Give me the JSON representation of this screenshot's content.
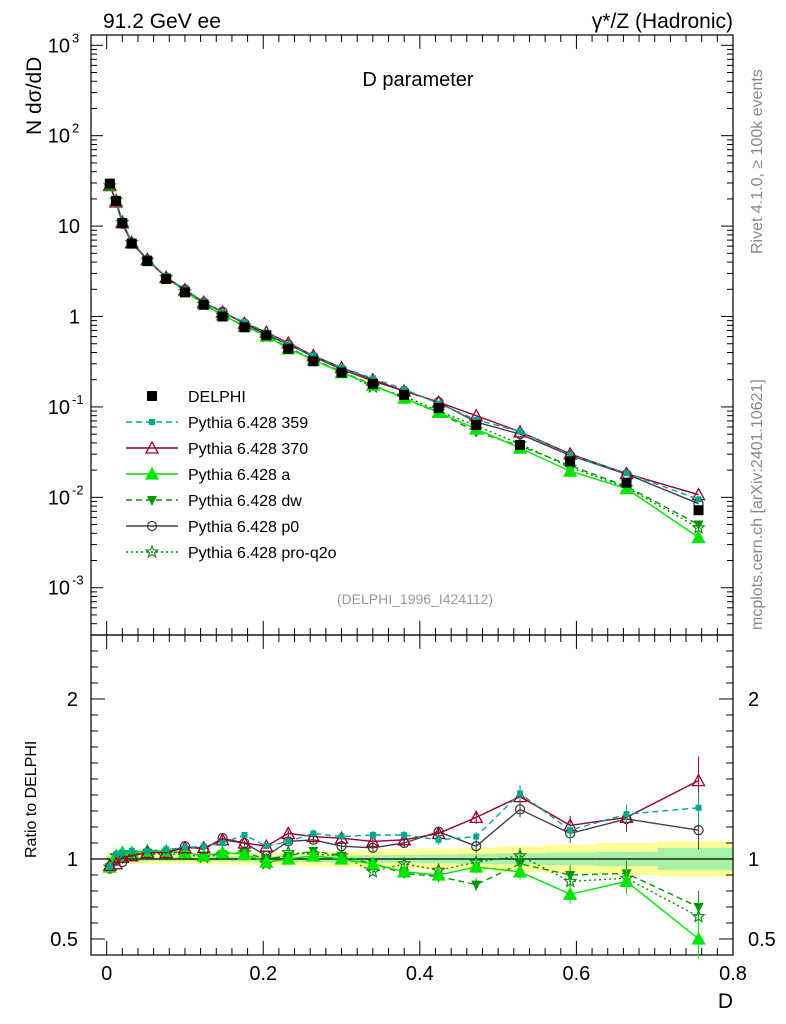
{
  "header": {
    "left_title": "91.2 GeV ee",
    "right_title": "γ*/Z (Hadronic)",
    "plot_title": "D parameter",
    "side_label_top": "Rivet 4.1.0, ≥ 100k events",
    "side_label_bottom": "mcplots.cern.ch [arXiv:2401.10621]",
    "analysis_id": "(DELPHI_1996_I424112)"
  },
  "colors": {
    "data": "#000000",
    "p359": "#00a88f",
    "p370": "#990033",
    "pa": "#00e600",
    "pdw": "#009900",
    "pp0": "#404040",
    "pq2o": "#008800",
    "band_inner": "#a8f2a8",
    "band_outer": "#ffff99"
  },
  "chart_data": [
    {
      "type": "line",
      "yscale": "log",
      "ylabel": "N  dσ/dD",
      "xlim": [
        -0.02,
        0.8
      ],
      "ylim": [
        0.0003,
        1300
      ],
      "y_ticks": [
        {
          "v": 0.001,
          "label": "10",
          "exp": "-3"
        },
        {
          "v": 0.01,
          "label": "10",
          "exp": "-2"
        },
        {
          "v": 0.1,
          "label": "10",
          "exp": "-1"
        },
        {
          "v": 1,
          "label": "1",
          "exp": ""
        },
        {
          "v": 10,
          "label": "10",
          "exp": ""
        },
        {
          "v": 100,
          "label": "10",
          "exp": "2"
        },
        {
          "v": 1000,
          "label": "10",
          "exp": "3"
        }
      ],
      "x": [
        0.004,
        0.012,
        0.02,
        0.032,
        0.052,
        0.076,
        0.1,
        0.124,
        0.148,
        0.176,
        0.204,
        0.232,
        0.264,
        0.3,
        0.34,
        0.38,
        0.424,
        0.472,
        0.528,
        0.592,
        0.664,
        0.756
      ],
      "series": [
        {
          "name": "DELPHI",
          "key": "data",
          "marker": "square",
          "dash": "",
          "values": [
            29.5,
            19.0,
            10.8,
            6.4,
            4.1,
            2.6,
            1.85,
            1.35,
            1.0,
            0.76,
            0.62,
            0.44,
            0.32,
            0.24,
            0.18,
            0.136,
            0.097,
            0.063,
            0.038,
            0.025,
            0.0145,
            0.0072
          ],
          "errors": [
            0.6,
            0.3,
            0.15,
            0.1,
            0.06,
            0.04,
            0.03,
            0.025,
            0.02,
            0.015,
            0.012,
            0.01,
            0.008,
            0.006,
            0.005,
            0.004,
            0.003,
            0.002,
            0.0015,
            0.001,
            0.0007,
            0.0005
          ]
        },
        {
          "name": "Pythia 6.428 359",
          "key": "p359",
          "marker": "smallsquare",
          "dash": "6,4",
          "values": [
            28.0,
            19.5,
            11.2,
            6.7,
            4.3,
            2.75,
            1.98,
            1.46,
            1.1,
            0.87,
            0.67,
            0.49,
            0.37,
            0.273,
            0.207,
            0.157,
            0.109,
            0.072,
            0.0535,
            0.0295,
            0.0185,
            0.0095
          ]
        },
        {
          "name": "Pythia 6.428 370",
          "key": "p370",
          "marker": "triangle-open",
          "dash": "",
          "values": [
            28.5,
            18.5,
            10.9,
            6.55,
            4.25,
            2.7,
            1.98,
            1.44,
            1.12,
            0.84,
            0.67,
            0.51,
            0.37,
            0.272,
            0.2,
            0.15,
            0.113,
            0.08,
            0.053,
            0.0302,
            0.0183,
            0.0107
          ]
        },
        {
          "name": "Pythia 6.428 a",
          "key": "pa",
          "marker": "triangle",
          "dash": "",
          "values": [
            28.0,
            19.3,
            11.2,
            6.65,
            4.3,
            2.72,
            1.93,
            1.38,
            1.04,
            0.78,
            0.61,
            0.44,
            0.33,
            0.24,
            0.174,
            0.125,
            0.087,
            0.057,
            0.035,
            0.0195,
            0.0125,
            0.0036
          ]
        },
        {
          "name": "Pythia 6.428 dw",
          "key": "pdw",
          "marker": "triangle-down",
          "dash": "6,4",
          "values": [
            28.2,
            19.2,
            11.1,
            6.6,
            4.28,
            2.7,
            1.92,
            1.37,
            1.03,
            0.79,
            0.62,
            0.45,
            0.335,
            0.245,
            0.175,
            0.124,
            0.086,
            0.053,
            0.037,
            0.0225,
            0.0132,
            0.005
          ]
        },
        {
          "name": "Pythia 6.428 p0",
          "key": "pp0",
          "marker": "circle-open",
          "dash": "",
          "values": [
            27.8,
            18.8,
            10.6,
            6.5,
            4.25,
            2.7,
            1.99,
            1.43,
            1.13,
            0.84,
            0.63,
            0.49,
            0.36,
            0.26,
            0.193,
            0.15,
            0.113,
            0.068,
            0.05,
            0.029,
            0.018,
            0.0085
          ]
        },
        {
          "name": "Pythia 6.428 pro-q2o",
          "key": "pq2o",
          "marker": "star-open",
          "dash": "2,3",
          "values": [
            28.0,
            19.4,
            11.0,
            6.6,
            4.2,
            2.7,
            1.9,
            1.36,
            1.03,
            0.79,
            0.6,
            0.46,
            0.33,
            0.244,
            0.166,
            0.132,
            0.09,
            0.062,
            0.039,
            0.0215,
            0.0128,
            0.0046
          ]
        }
      ]
    },
    {
      "type": "line",
      "ylabel": "Ratio to DELPHI",
      "xlabel": "D",
      "xlim": [
        -0.02,
        0.8
      ],
      "ylim": [
        0.4,
        2.4
      ],
      "y_ticks": [
        0.5,
        1,
        2
      ],
      "y_tick_labels": [
        "0.5",
        "1",
        "2"
      ],
      "x_ticks": [
        0,
        0.2,
        0.4,
        0.6,
        0.8
      ],
      "x_tick_labels": [
        "0",
        "0.2",
        "0.4",
        "0.6",
        "0.8"
      ],
      "band_edges": [
        0,
        0.008,
        0.016,
        0.024,
        0.04,
        0.064,
        0.088,
        0.112,
        0.136,
        0.16,
        0.192,
        0.216,
        0.248,
        0.28,
        0.32,
        0.36,
        0.4,
        0.448,
        0.496,
        0.56,
        0.624,
        0.704,
        0.8
      ],
      "band_inner": [
        0.02,
        0.015,
        0.012,
        0.012,
        0.012,
        0.012,
        0.012,
        0.014,
        0.015,
        0.016,
        0.017,
        0.018,
        0.02,
        0.022,
        0.024,
        0.026,
        0.028,
        0.032,
        0.035,
        0.04,
        0.045,
        0.07
      ],
      "band_outer": [
        0.04,
        0.035,
        0.03,
        0.03,
        0.03,
        0.03,
        0.03,
        0.032,
        0.034,
        0.036,
        0.038,
        0.04,
        0.045,
        0.05,
        0.055,
        0.06,
        0.065,
        0.07,
        0.08,
        0.09,
        0.1,
        0.11
      ],
      "series": [
        {
          "key": "p359",
          "values": [
            0.95,
            1.03,
            1.04,
            1.05,
            1.05,
            1.06,
            1.07,
            1.08,
            1.1,
            1.15,
            1.08,
            1.11,
            1.16,
            1.14,
            1.15,
            1.15,
            1.12,
            1.14,
            1.41,
            1.18,
            1.28,
            1.32
          ],
          "errors": [
            0.01,
            0.01,
            0.01,
            0.01,
            0.01,
            0.01,
            0.01,
            0.01,
            0.015,
            0.015,
            0.015,
            0.02,
            0.02,
            0.02,
            0.025,
            0.025,
            0.03,
            0.03,
            0.05,
            0.05,
            0.06,
            0.1
          ]
        },
        {
          "key": "p370",
          "values": [
            0.96,
            0.97,
            1.01,
            1.02,
            1.04,
            1.04,
            1.07,
            1.07,
            1.12,
            1.1,
            1.08,
            1.16,
            1.14,
            1.13,
            1.11,
            1.12,
            1.16,
            1.26,
            1.39,
            1.21,
            1.26,
            1.49
          ],
          "errors": [
            0.01,
            0.01,
            0.01,
            0.01,
            0.01,
            0.01,
            0.01,
            0.01,
            0.015,
            0.015,
            0.015,
            0.02,
            0.02,
            0.02,
            0.025,
            0.025,
            0.03,
            0.04,
            0.05,
            0.06,
            0.08,
            0.15
          ]
        },
        {
          "key": "pa",
          "values": [
            0.95,
            1.02,
            1.04,
            1.04,
            1.05,
            1.05,
            1.04,
            1.02,
            1.04,
            1.03,
            0.98,
            1.0,
            1.02,
            1.0,
            0.97,
            0.92,
            0.9,
            0.95,
            0.92,
            0.78,
            0.86,
            0.5
          ],
          "errors": [
            0.01,
            0.01,
            0.01,
            0.01,
            0.01,
            0.01,
            0.01,
            0.01,
            0.015,
            0.015,
            0.015,
            0.02,
            0.02,
            0.02,
            0.025,
            0.025,
            0.03,
            0.04,
            0.05,
            0.06,
            0.08,
            0.12
          ]
        },
        {
          "key": "pdw",
          "values": [
            0.95,
            1.01,
            1.03,
            1.03,
            1.04,
            1.04,
            1.04,
            1.02,
            1.03,
            1.04,
            1.0,
            1.02,
            1.05,
            1.02,
            0.97,
            0.91,
            0.89,
            0.84,
            0.97,
            0.9,
            0.91,
            0.7
          ],
          "errors": [
            0.01,
            0.01,
            0.01,
            0.01,
            0.01,
            0.01,
            0.01,
            0.01,
            0.015,
            0.015,
            0.015,
            0.02,
            0.02,
            0.02,
            0.025,
            0.025,
            0.03,
            0.04,
            0.05,
            0.06,
            0.08,
            0.1
          ]
        },
        {
          "key": "pp0",
          "values": [
            0.94,
            0.99,
            0.98,
            1.02,
            1.04,
            1.04,
            1.08,
            1.06,
            1.13,
            1.1,
            1.02,
            1.11,
            1.12,
            1.08,
            1.07,
            1.1,
            1.17,
            1.08,
            1.31,
            1.16,
            1.25,
            1.18
          ],
          "errors": [
            0.01,
            0.01,
            0.01,
            0.01,
            0.01,
            0.01,
            0.01,
            0.01,
            0.015,
            0.015,
            0.015,
            0.02,
            0.02,
            0.02,
            0.025,
            0.025,
            0.03,
            0.04,
            0.05,
            0.06,
            0.08,
            0.12
          ]
        },
        {
          "key": "pq2o",
          "values": [
            0.95,
            1.02,
            1.02,
            1.03,
            1.03,
            1.03,
            1.03,
            1.01,
            1.03,
            1.04,
            0.97,
            1.04,
            1.03,
            1.02,
            0.92,
            0.97,
            0.93,
            0.98,
            1.02,
            0.86,
            0.88,
            0.64
          ],
          "errors": [
            0.01,
            0.01,
            0.01,
            0.01,
            0.01,
            0.01,
            0.01,
            0.01,
            0.015,
            0.015,
            0.015,
            0.02,
            0.02,
            0.02,
            0.025,
            0.025,
            0.03,
            0.04,
            0.05,
            0.06,
            0.08,
            0.1
          ]
        }
      ]
    }
  ]
}
